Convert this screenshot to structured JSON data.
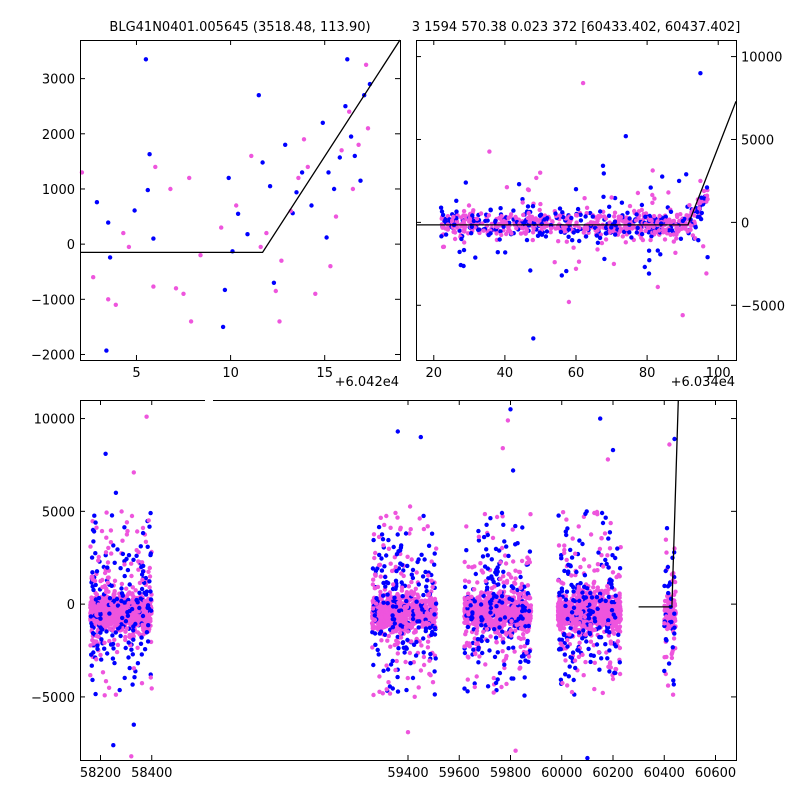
{
  "chart_data": [
    {
      "type": "scatter",
      "title": "BLG41N0401.005645 (3518.48, 113.90)",
      "xlim": [
        2,
        19
      ],
      "ylim": [
        -2100,
        3700
      ],
      "x_offset_label": "+6.042e4",
      "x_ticks": [
        5,
        10,
        15
      ],
      "x_tick_labels": [
        "5",
        "10",
        "15"
      ],
      "y_ticks": [
        -2000,
        -1000,
        0,
        1000,
        2000,
        3000
      ],
      "y_tick_labels": [
        "−2000",
        "−1000",
        "0",
        "1000",
        "2000",
        "3000"
      ],
      "series_colors": [
        "#0000ff",
        "#ee55dd"
      ],
      "model_line": [
        [
          2,
          -150
        ],
        [
          11.7,
          -150
        ],
        [
          19,
          3750
        ]
      ],
      "point_cloud": {
        "blue": [
          [
            3.4,
            -1930
          ],
          [
            5.5,
            3350
          ],
          [
            5.7,
            1630
          ],
          [
            2.9,
            760
          ],
          [
            3.5,
            390
          ],
          [
            3.6,
            -240
          ],
          [
            5.6,
            980
          ],
          [
            5.9,
            100
          ],
          [
            9.7,
            -830
          ],
          [
            9.9,
            1200
          ],
          [
            10.4,
            550
          ],
          [
            10.9,
            180
          ],
          [
            11.5,
            2700
          ],
          [
            11.7,
            1480
          ],
          [
            12.1,
            1050
          ],
          [
            12.9,
            1800
          ],
          [
            13.5,
            940
          ],
          [
            13.3,
            560
          ],
          [
            14.3,
            700
          ],
          [
            14.9,
            2200
          ],
          [
            15.1,
            120
          ],
          [
            15.5,
            1000
          ],
          [
            15.8,
            1570
          ],
          [
            16.1,
            2500
          ],
          [
            16.4,
            1950
          ],
          [
            16.9,
            1150
          ],
          [
            17.1,
            2700
          ],
          [
            17.4,
            2900
          ],
          [
            16.6,
            1600
          ],
          [
            12.3,
            -700
          ],
          [
            13.8,
            1300
          ],
          [
            10.1,
            -130
          ],
          [
            9.6,
            -1500
          ],
          [
            4.9,
            610
          ],
          [
            15.2,
            1300
          ],
          [
            16.2,
            3350
          ]
        ],
        "pink": [
          [
            2.1,
            1300
          ],
          [
            2.7,
            -600
          ],
          [
            3.5,
            -1000
          ],
          [
            3.9,
            -1100
          ],
          [
            4.3,
            200
          ],
          [
            4.6,
            -50
          ],
          [
            5.9,
            -770
          ],
          [
            6.8,
            1000
          ],
          [
            7.5,
            -900
          ],
          [
            7.9,
            -1400
          ],
          [
            7.8,
            1200
          ],
          [
            8.4,
            -200
          ],
          [
            9.5,
            300
          ],
          [
            10.3,
            700
          ],
          [
            11.1,
            1600
          ],
          [
            11.6,
            -50
          ],
          [
            12.4,
            -850
          ],
          [
            12.7,
            -300
          ],
          [
            13.2,
            600
          ],
          [
            13.6,
            1200
          ],
          [
            13.9,
            1900
          ],
          [
            14.5,
            -900
          ],
          [
            15.3,
            -400
          ],
          [
            15.6,
            500
          ],
          [
            15.9,
            1700
          ],
          [
            16.3,
            2400
          ],
          [
            16.5,
            1000
          ],
          [
            16.8,
            1800
          ],
          [
            17.2,
            3250
          ],
          [
            17.3,
            2100
          ],
          [
            14.1,
            1400
          ],
          [
            12.6,
            -1400
          ],
          [
            11.9,
            200
          ],
          [
            7.1,
            -800
          ],
          [
            6.0,
            1400
          ]
        ]
      }
    },
    {
      "type": "scatter",
      "title": "3 1594 570.38 0.023 372 [60433.402, 60437.402]",
      "xlim": [
        15,
        105
      ],
      "ylim": [
        -8300,
        11000
      ],
      "x_offset_label": "+6.034e4",
      "x_ticks": [
        20,
        40,
        60,
        80,
        100
      ],
      "x_tick_labels": [
        "20",
        "40",
        "60",
        "80",
        "100"
      ],
      "y_ticks": [
        -5000,
        0,
        5000,
        10000
      ],
      "y_tick_labels": [
        "−5000",
        "0",
        "5000",
        "10000"
      ],
      "y_axis_side": "right",
      "series_colors": [
        "#0000ff",
        "#ee55dd"
      ],
      "model_line": [
        [
          15,
          -150
        ],
        [
          91.5,
          -150
        ],
        [
          105,
          7300
        ]
      ],
      "point_cloud": {
        "x_range": [
          22,
          97
        ],
        "core_sd": 380,
        "blue_outliers": [
          [
            29,
            2400
          ],
          [
            34,
            -8300
          ],
          [
            44,
            2300
          ],
          [
            48,
            -7000
          ],
          [
            56,
            -3200
          ],
          [
            60,
            2000
          ],
          [
            74,
            5200
          ],
          [
            83,
            -1700
          ],
          [
            89,
            2500
          ],
          [
            91,
            2900
          ],
          [
            95,
            9000
          ],
          [
            97,
            -2100
          ],
          [
            38,
            -1800
          ],
          [
            68,
            -2200
          ],
          [
            81,
            2100
          ]
        ],
        "pink_outliers": [
          [
            62,
            8400
          ],
          [
            58,
            -4800
          ],
          [
            74,
            -1200
          ],
          [
            83,
            -3900
          ],
          [
            90,
            -5600
          ],
          [
            54,
            -2400
          ],
          [
            26,
            -1000
          ],
          [
            45,
            1200
          ],
          [
            70,
            1500
          ],
          [
            95,
            2500
          ],
          [
            96,
            1900
          ],
          [
            97,
            1400
          ],
          [
            60,
            -2800
          ],
          [
            86,
            1800
          ]
        ]
      }
    },
    {
      "type": "scatter",
      "title": "",
      "xlim": [
        58120,
        60680
      ],
      "ylim": [
        -8400,
        11000
      ],
      "x_break": [
        58430,
        59260
      ],
      "x_ticks": [
        58200,
        58400,
        59400,
        59600,
        59800,
        60000,
        60200,
        60400,
        60600
      ],
      "x_tick_labels": [
        "58200",
        "58400",
        "59400",
        "59600",
        "59800",
        "60000",
        "60200",
        "60400",
        "60600"
      ],
      "y_ticks": [
        -5000,
        0,
        5000,
        10000
      ],
      "y_tick_labels": [
        "−5000",
        "0",
        "5000",
        "10000"
      ],
      "series_colors": [
        "#0000ff",
        "#ee55dd"
      ],
      "model_line": [
        [
          60300,
          -150
        ],
        [
          60430,
          -150
        ],
        [
          60455,
          11000
        ]
      ],
      "seasons": [
        [
          58160,
          58400
        ],
        [
          59260,
          59510
        ],
        [
          59620,
          59880
        ],
        [
          59985,
          60230
        ],
        [
          60400,
          60445
        ]
      ],
      "point_cloud": {
        "core_sd": 450,
        "spread": 2600,
        "blue_outliers": [
          [
            58220,
            8100
          ],
          [
            58260,
            6000
          ],
          [
            59360,
            9300
          ],
          [
            59450,
            9000
          ],
          [
            59800,
            10500
          ],
          [
            59810,
            7200
          ],
          [
            60150,
            10000
          ],
          [
            60200,
            8300
          ],
          [
            58250,
            -7600
          ],
          [
            58330,
            -6500
          ],
          [
            59830,
            -8400
          ],
          [
            60100,
            -8300
          ],
          [
            60440,
            8900
          ],
          [
            60400,
            -3600
          ]
        ],
        "pink_outliers": [
          [
            58380,
            10100
          ],
          [
            58330,
            7100
          ],
          [
            59790,
            9900
          ],
          [
            59770,
            8400
          ],
          [
            60180,
            7800
          ],
          [
            60420,
            8600
          ],
          [
            58320,
            -8200
          ],
          [
            59820,
            -7900
          ],
          [
            60060,
            -8400
          ],
          [
            59400,
            -6900
          ],
          [
            60440,
            3000
          ],
          [
            60430,
            1600
          ]
        ]
      }
    }
  ]
}
